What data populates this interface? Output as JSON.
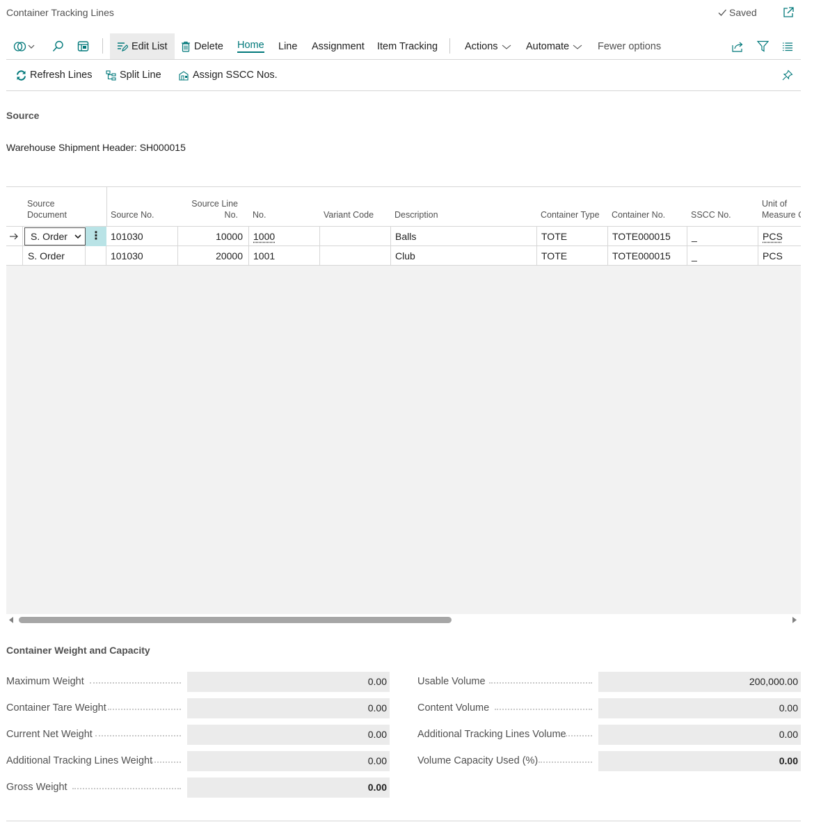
{
  "page": {
    "title": "Container Tracking Lines",
    "saved_label": "Saved"
  },
  "actionbar": {
    "edit_list": "Edit List",
    "delete": "Delete",
    "home": "Home",
    "line": "Line",
    "assignment": "Assignment",
    "item_tracking": "Item Tracking",
    "actions": "Actions",
    "automate": "Automate",
    "fewer_options": "Fewer options"
  },
  "promoted": {
    "refresh_lines": "Refresh Lines",
    "split_line": "Split Line",
    "assign_sscc": "Assign SSCC Nos."
  },
  "source": {
    "label": "Source",
    "text": "Warehouse Shipment Header: SH000015"
  },
  "grid": {
    "headers": {
      "source_document_1": "Source",
      "source_document_2": "Document",
      "source_no": "Source No.",
      "source_line_no_1": "Source Line",
      "source_line_no_2": "No.",
      "no": "No.",
      "variant_code": "Variant Code",
      "description": "Description",
      "container_type": "Container Type",
      "container_no": "Container No.",
      "sscc_no": "SSCC No.",
      "uom_1": "Unit of",
      "uom_2": "Measure C"
    },
    "rows": [
      {
        "source_document": "S. Order",
        "source_no": "101030",
        "source_line_no": "10000",
        "no": "1000",
        "variant_code": "",
        "description": "Balls",
        "container_type": "TOTE",
        "container_no": "TOTE000015",
        "sscc_no": "_",
        "uom": "PCS"
      },
      {
        "source_document": "S. Order",
        "source_no": "101030",
        "source_line_no": "20000",
        "no": "1001",
        "variant_code": "",
        "description": "Club",
        "container_type": "TOTE",
        "container_no": "TOTE000015",
        "sscc_no": "_",
        "uom": "PCS"
      }
    ]
  },
  "capacity": {
    "title": "Container Weight and Capacity",
    "max_weight": {
      "label": "Maximum Weight",
      "value": "0.00"
    },
    "tare_weight": {
      "label": "Container Tare Weight",
      "value": "0.00"
    },
    "net_weight": {
      "label": "Current Net Weight",
      "value": "0.00"
    },
    "add_weight": {
      "label": "Additional Tracking Lines Weight",
      "value": "0.00"
    },
    "gross_weight": {
      "label": "Gross Weight",
      "value": "0.00"
    },
    "usable_volume": {
      "label": "Usable Volume",
      "value": "200,000.00"
    },
    "content_volume": {
      "label": "Content Volume",
      "value": "0.00"
    },
    "add_volume": {
      "label": "Additional Tracking Lines Volume",
      "value": "0.00"
    },
    "volume_used": {
      "label": "Volume Capacity Used (%)",
      "value": "0.00"
    }
  },
  "colors": {
    "accent": "#00787a",
    "row_selected_menu": "#b9e3e6",
    "field_bg": "#ebebeb"
  }
}
